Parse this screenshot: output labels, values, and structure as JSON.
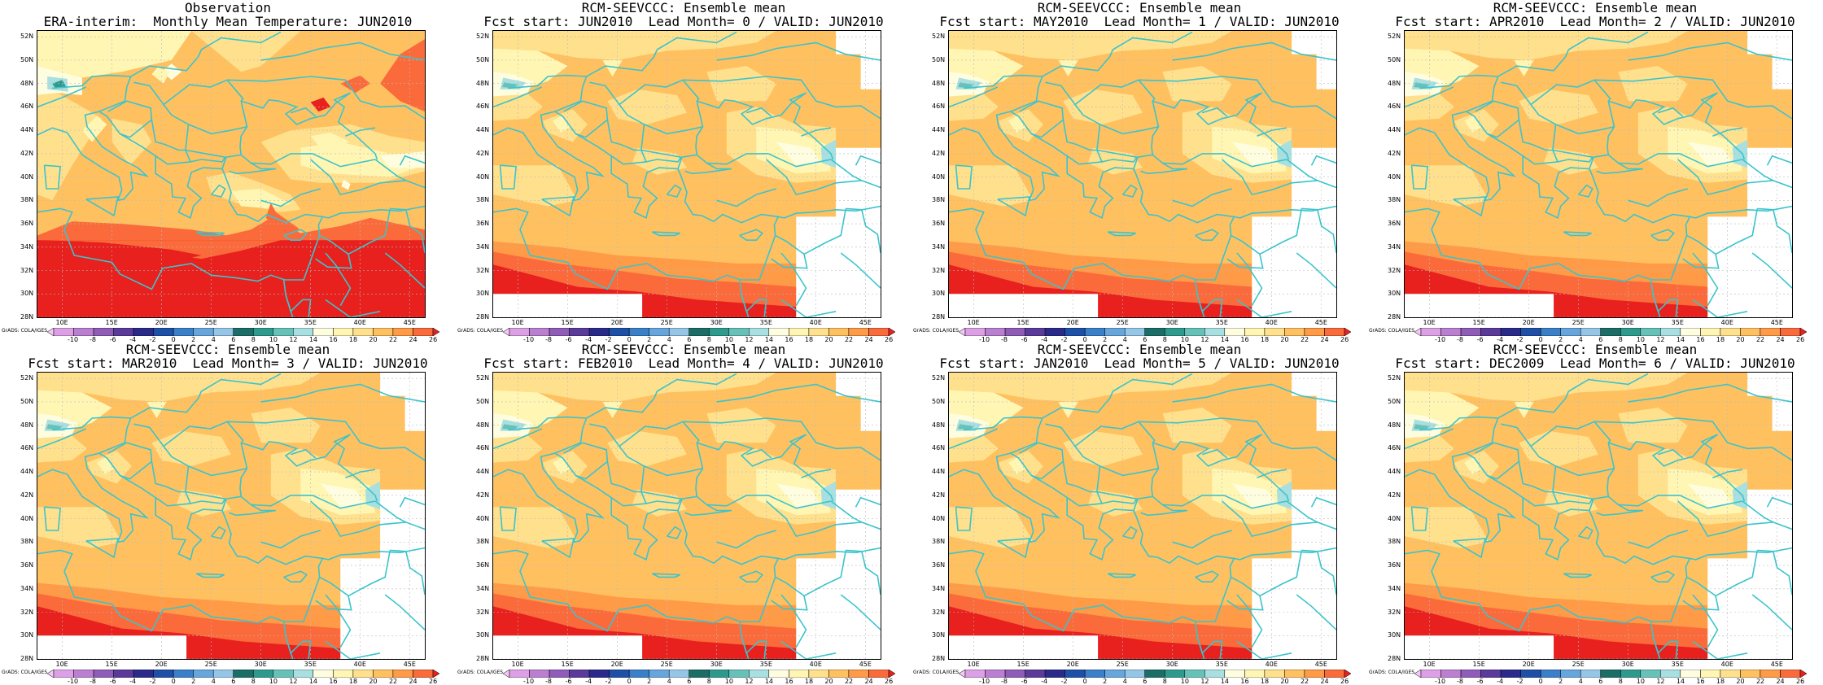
{
  "panels": [
    {
      "title1": "Observation",
      "title2": "ERA-interim:  Monthly Mean Temperature: JUN2010",
      "kind": "obs"
    },
    {
      "title1": "RCM-SEEVCCC: Ensemble mean",
      "title2": "Fcst start: JUN2010  Lead Month= 0 / VALID: JUN2010",
      "kind": "fc"
    },
    {
      "title1": "RCM-SEEVCCC: Ensemble mean",
      "title2": "Fcst start: MAY2010  Lead Month= 1 / VALID: JUN2010",
      "kind": "fc"
    },
    {
      "title1": "RCM-SEEVCCC: Ensemble mean",
      "title2": "Fcst start: APR2010  Lead Month= 2 / VALID: JUN2010",
      "kind": "fc"
    },
    {
      "title1": "RCM-SEEVCCC: Ensemble mean",
      "title2": "Fcst start: MAR2010  Lead Month= 3 / VALID: JUN2010",
      "kind": "fc"
    },
    {
      "title1": "RCM-SEEVCCC: Ensemble mean",
      "title2": "Fcst start: FEB2010  Lead Month= 4 / VALID: JUN2010",
      "kind": "fc"
    },
    {
      "title1": "RCM-SEEVCCC: Ensemble mean",
      "title2": "Fcst start: JAN2010  Lead Month= 5 / VALID: JUN2010",
      "kind": "fc"
    },
    {
      "title1": "RCM-SEEVCCC: Ensemble mean",
      "title2": "Fcst start: DEC2009  Lead Month= 6 / VALID: JUN2010",
      "kind": "fc"
    }
  ],
  "lat_labels": [
    "52N",
    "50N",
    "48N",
    "46N",
    "44N",
    "42N",
    "40N",
    "38N",
    "36N",
    "34N",
    "32N",
    "30N",
    "28N"
  ],
  "lon_labels": [
    "10E",
    "15E",
    "20E",
    "25E",
    "30E",
    "35E",
    "40E",
    "45E"
  ],
  "colorbar": {
    "labels": [
      "-10",
      "-8",
      "-6",
      "-4",
      "-2",
      "0",
      "2",
      "4",
      "6",
      "8",
      "10",
      "12",
      "14",
      "16",
      "18",
      "20",
      "22",
      "24",
      "26"
    ],
    "colors": [
      "#f3c9f5",
      "#dda0e6",
      "#bb7fd1",
      "#8f5cb8",
      "#5a3a9a",
      "#2a2a8a",
      "#1e50a8",
      "#3a80c8",
      "#66a6dc",
      "#95c6e8",
      "#1a6e66",
      "#2e9a8e",
      "#66c2b8",
      "#a8dfe0",
      "#fffde0",
      "#fff6b4",
      "#ffe08c",
      "#ffc060",
      "#ff9a46",
      "#fb6a3a",
      "#e8201e"
    ]
  },
  "credit": "GrADS: COLA/IGES",
  "colors": {
    "coast": "#3cc4cc",
    "grid": "#bbbbbb"
  }
}
